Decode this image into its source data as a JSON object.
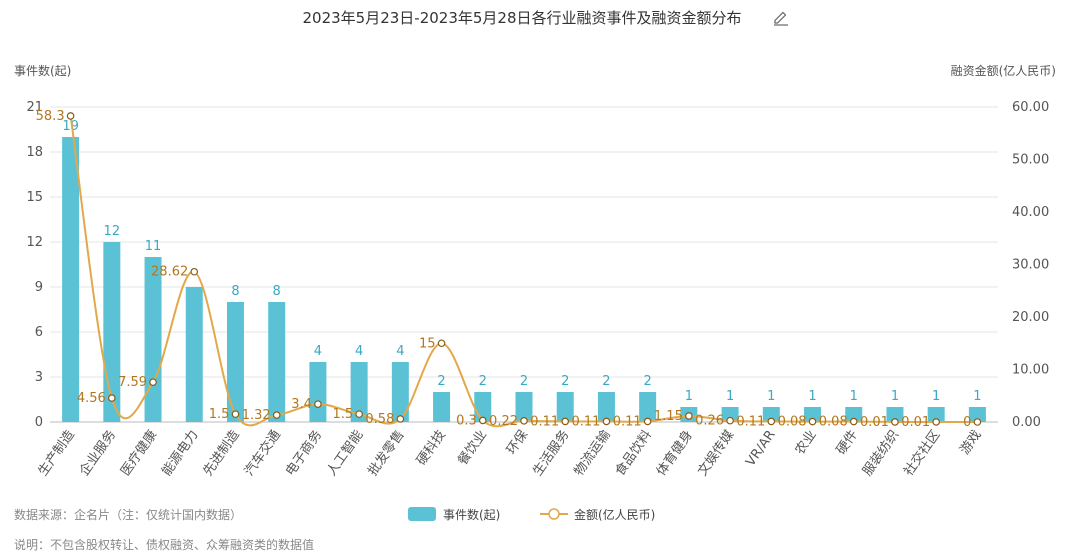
{
  "title": "2023年5月23日-2023年5月28日各行业融资事件及融资金额分布",
  "edit_icon": "pencil-icon",
  "footer": {
    "source": "数据来源：企名片（注：仅统计国内数据）",
    "note": "说明：不包含股权转让、债权融资、众筹融资类的数据值"
  },
  "colors": {
    "bar": "#5bc2d6",
    "line": "#e3a84a",
    "bar_label": "#3aa9c2",
    "line_label": "#b2771e"
  },
  "chart_data": {
    "type": "bar",
    "title": "2023年5月23日-2023年5月28日各行业融资事件及融资金额分布",
    "categories": [
      "生产制造",
      "企业服务",
      "医疗健康",
      "能源电力",
      "先进制造",
      "汽车交通",
      "电子商务",
      "人工智能",
      "批发零售",
      "硬科技",
      "餐饮业",
      "环保",
      "生活服务",
      "物流运输",
      "食品饮料",
      "体育健身",
      "文娱传媒",
      "VR/AR",
      "农业",
      "硬件",
      "服装纺织",
      "社交社区",
      "游戏"
    ],
    "series": [
      {
        "name": "事件数(起)",
        "type": "bar",
        "axis": "left",
        "values": [
          19,
          12,
          11,
          9,
          8,
          8,
          4,
          4,
          4,
          2,
          2,
          2,
          2,
          2,
          2,
          1,
          1,
          1,
          1,
          1,
          1,
          1,
          1
        ],
        "labels": [
          "19",
          "12",
          "11",
          "",
          "8",
          "8",
          "4",
          "4",
          "4",
          "2",
          "2",
          "2",
          "2",
          "2",
          "2",
          "1",
          "1",
          "1",
          "1",
          "1",
          "1",
          "1",
          "1"
        ]
      },
      {
        "name": "金额(亿人民币)",
        "type": "line",
        "axis": "right",
        "values": [
          58.3,
          4.56,
          7.59,
          28.62,
          1.5,
          1.32,
          3.4,
          1.5,
          0.58,
          15,
          0.3,
          0.22,
          0.11,
          0.11,
          0.11,
          1.15,
          0.26,
          0.11,
          0.08,
          0.08,
          0.01,
          0.01,
          0
        ],
        "labels": [
          "58.3",
          "4.56",
          "7.59",
          "28.62",
          "1.5",
          "1.32",
          "3.4",
          "1.5",
          "0.58",
          "15",
          "0.3",
          "0.22",
          "0.11",
          "0.11",
          "0.11",
          "1.15",
          "0.26",
          "0.11",
          "0.08",
          "0.08",
          "0.01",
          "0.01",
          "0"
        ]
      }
    ],
    "ylabel_left": "事件数(起)",
    "ylabel_right": "融资金额(亿人民币)",
    "ylim_left": [
      0,
      21
    ],
    "yticks_left": [
      "0",
      "3",
      "6",
      "9",
      "12",
      "15",
      "18",
      "21"
    ],
    "ylim_right": [
      0,
      60
    ],
    "yticks_right": [
      "0.00",
      "10.00",
      "20.00",
      "30.00",
      "40.00",
      "50.00",
      "60.00"
    ],
    "legend": [
      "事件数(起)",
      "金额(亿人民币)"
    ],
    "legend_position": "bottom",
    "grid": true
  }
}
